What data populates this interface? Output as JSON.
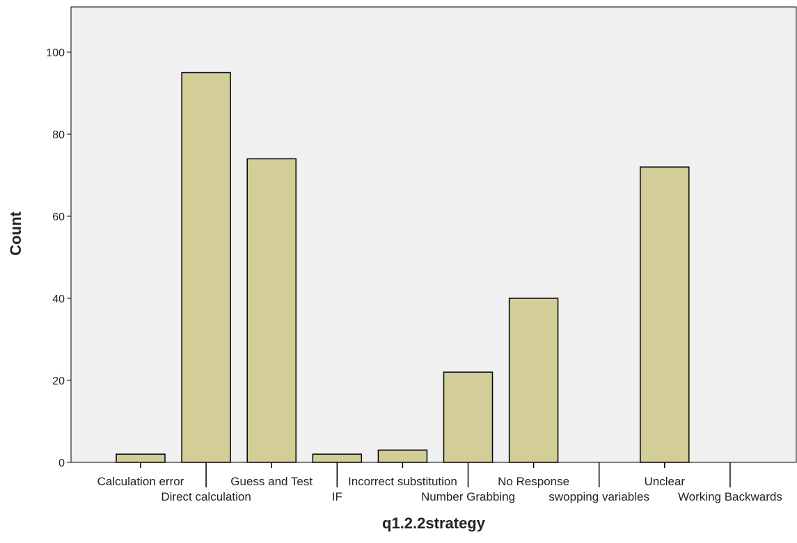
{
  "chart_data": {
    "type": "bar",
    "title": "",
    "xlabel": "q1.2.2strategy",
    "ylabel": "Count",
    "ylim": [
      0,
      110
    ],
    "yticks": [
      0,
      20,
      40,
      60,
      80,
      100
    ],
    "grid": false,
    "categories": [
      "Calculation error",
      "Direct calculation",
      "Guess and Test",
      "IF",
      "Incorrect substitution",
      "Number Grabbing",
      "No Response",
      "swopping variables",
      "Unclear",
      "Working Backwards"
    ],
    "values": [
      2,
      95,
      74,
      2,
      3,
      22,
      40,
      0,
      72,
      0
    ],
    "colors": {
      "bar_fill": "#D3CE97",
      "bar_stroke": "#000000",
      "plot_background": "#F0F0F0",
      "axis": "#000000"
    }
  }
}
